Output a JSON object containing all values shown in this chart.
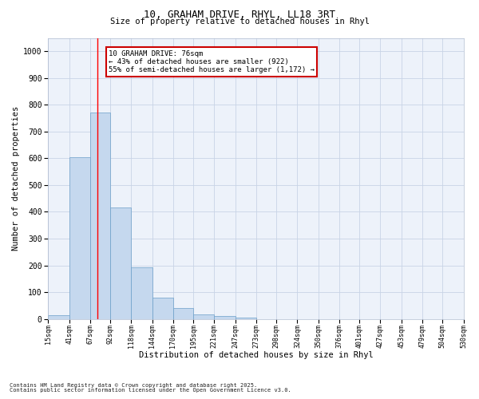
{
  "title_line1": "10, GRAHAM DRIVE, RHYL, LL18 3RT",
  "title_line2": "Size of property relative to detached houses in Rhyl",
  "xlabel": "Distribution of detached houses by size in Rhyl",
  "ylabel": "Number of detached properties",
  "bin_edges": [
    15,
    41,
    67,
    92,
    118,
    144,
    170,
    195,
    221,
    247,
    273,
    298,
    324,
    350,
    376,
    401,
    427,
    453,
    479,
    504,
    530
  ],
  "bar_heights": [
    15,
    605,
    770,
    415,
    193,
    78,
    40,
    18,
    10,
    5,
    0,
    0,
    0,
    0,
    0,
    0,
    0,
    0,
    0,
    0
  ],
  "bar_color": "#c5d8ee",
  "bar_edge_color": "#6b9ec8",
  "grid_color": "#c8d4e6",
  "background_color": "#edf2fa",
  "red_line_x": 76,
  "annotation_text": "10 GRAHAM DRIVE: 76sqm\n← 43% of detached houses are smaller (922)\n55% of semi-detached houses are larger (1,172) →",
  "annotation_box_color": "#ffffff",
  "annotation_box_edge_color": "#cc0000",
  "ylim": [
    0,
    1050
  ],
  "yticks": [
    0,
    100,
    200,
    300,
    400,
    500,
    600,
    700,
    800,
    900,
    1000
  ],
  "tick_labels": [
    "15sqm",
    "41sqm",
    "67sqm",
    "92sqm",
    "118sqm",
    "144sqm",
    "170sqm",
    "195sqm",
    "221sqm",
    "247sqm",
    "273sqm",
    "298sqm",
    "324sqm",
    "350sqm",
    "376sqm",
    "401sqm",
    "427sqm",
    "453sqm",
    "479sqm",
    "504sqm",
    "530sqm"
  ],
  "footer_line1": "Contains HM Land Registry data © Crown copyright and database right 2025.",
  "footer_line2": "Contains public sector information licensed under the Open Government Licence v3.0."
}
